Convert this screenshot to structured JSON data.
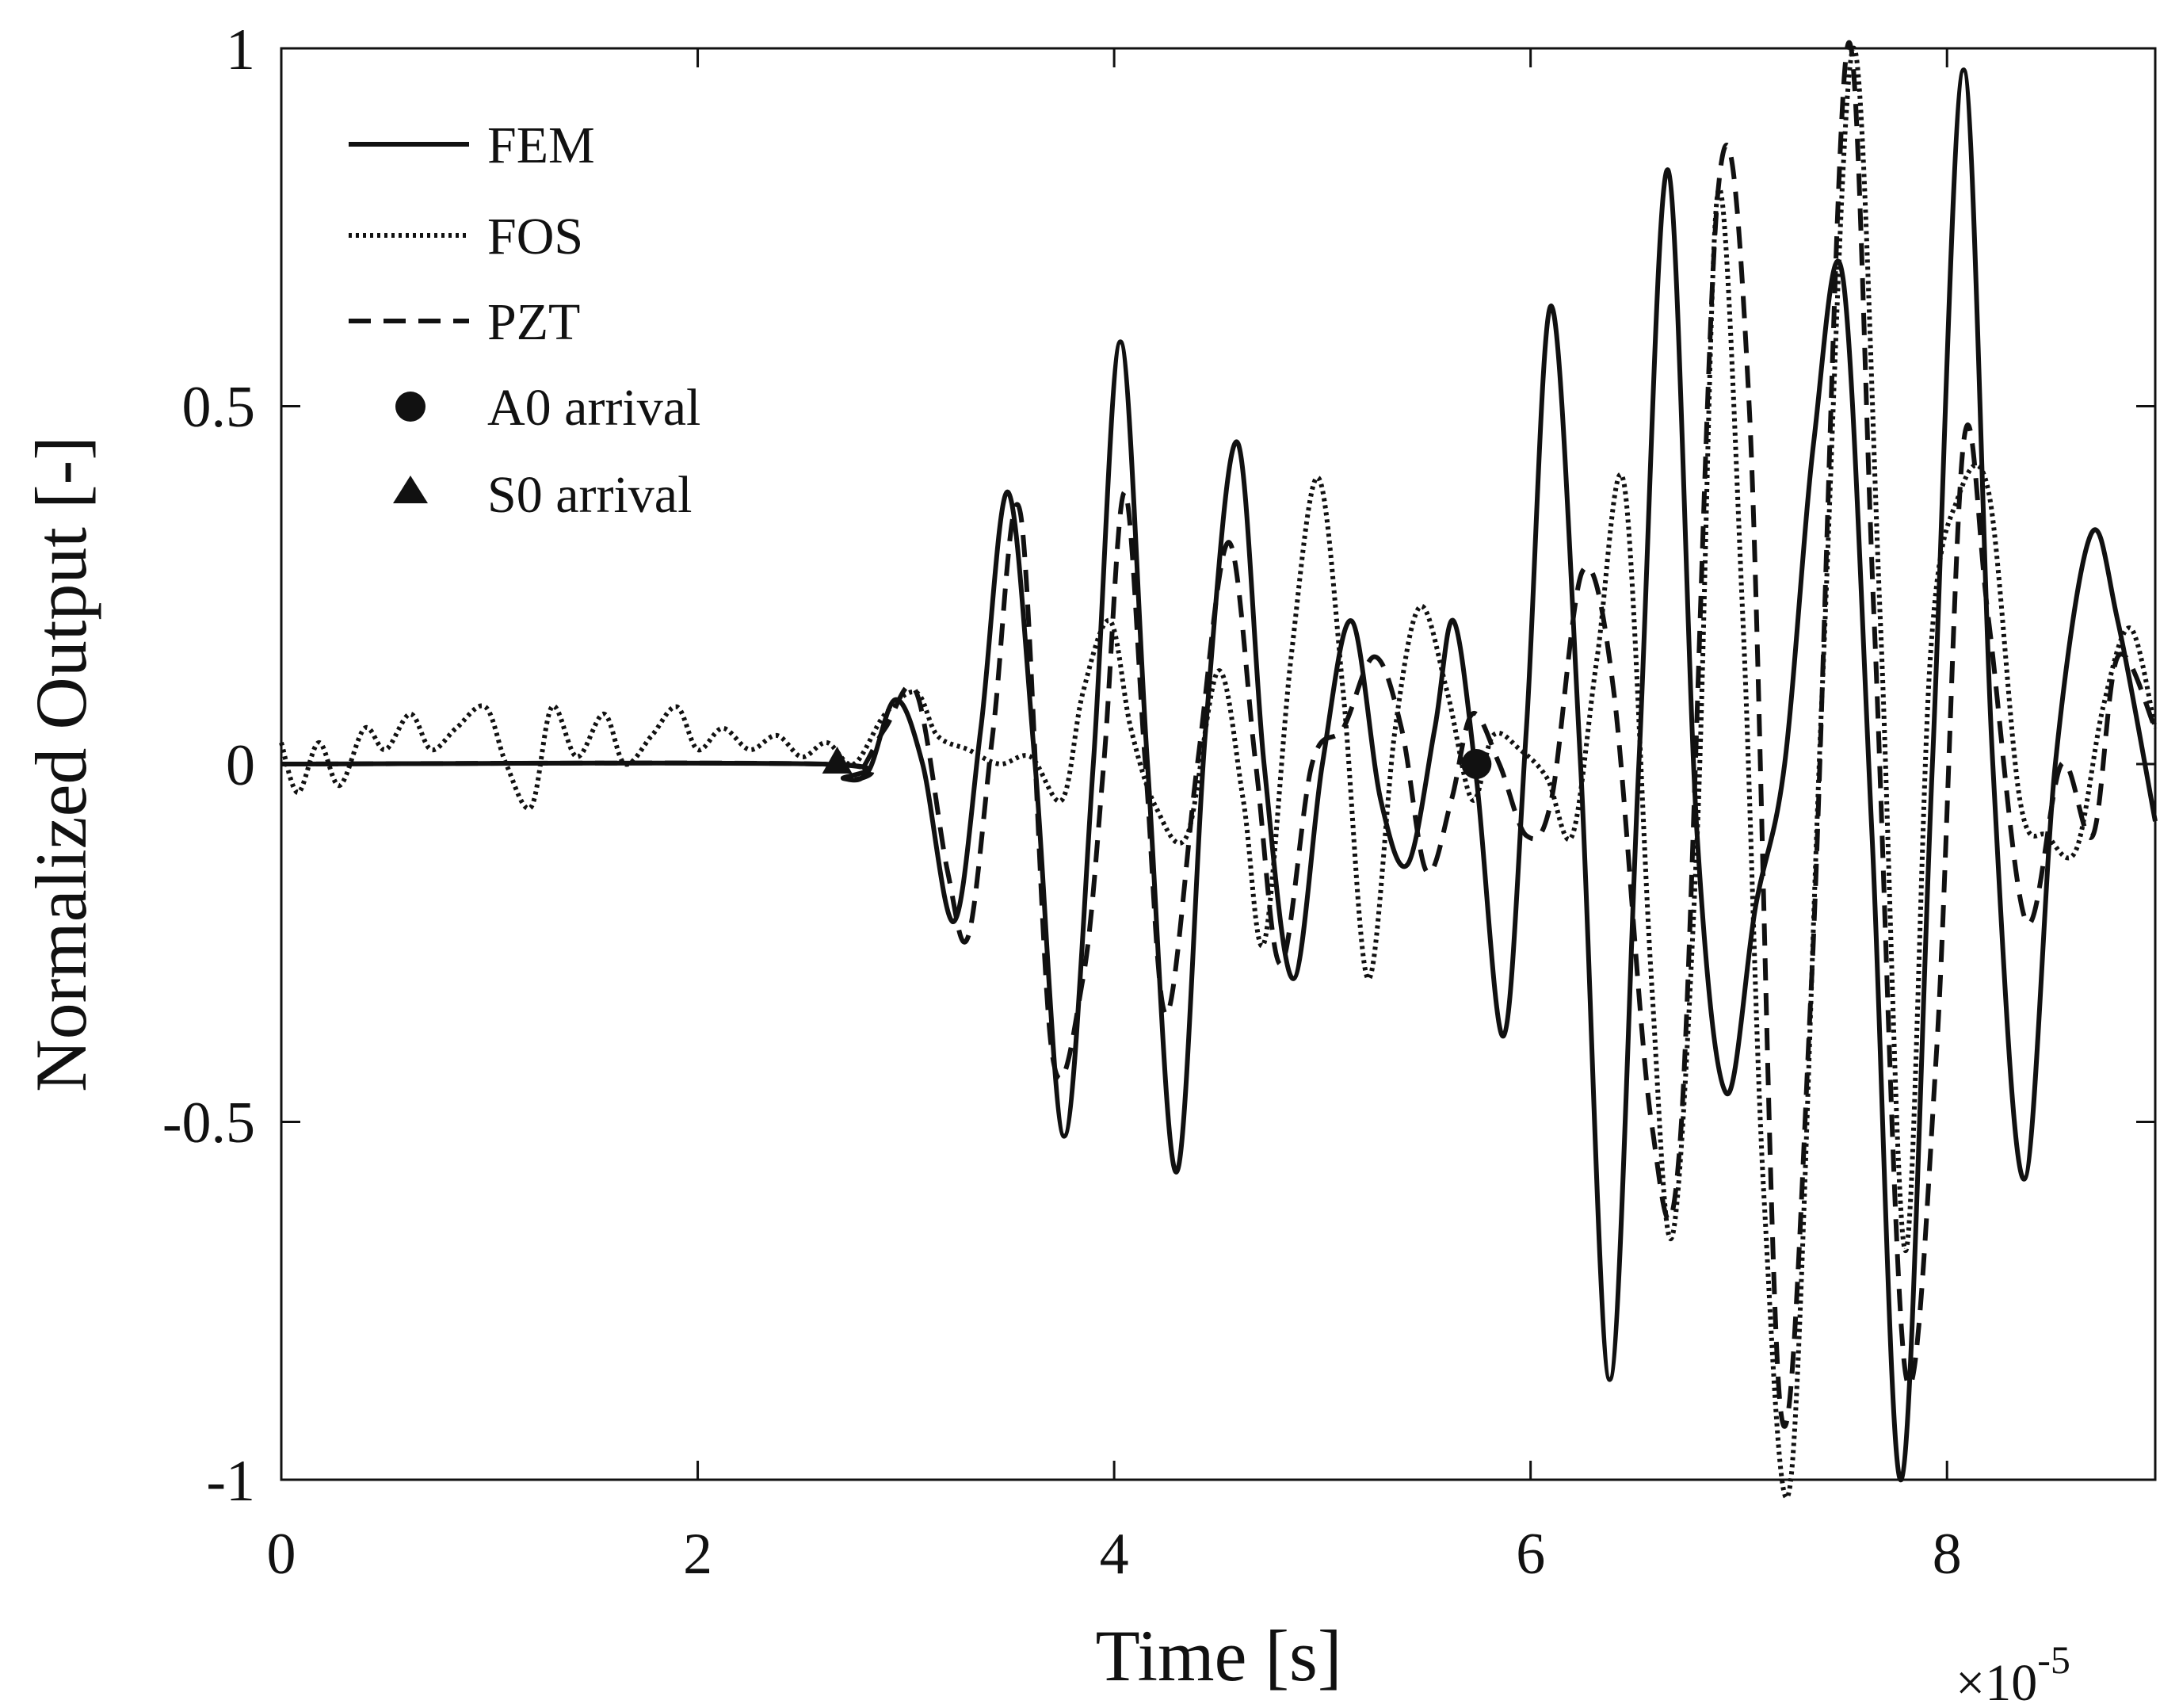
{
  "chart_data": {
    "type": "line",
    "title": "",
    "xlabel": "Time [s]",
    "ylabel": "Normalized Output [-]",
    "x_exponent_base": "×10",
    "x_exponent_power": "-5",
    "xlim": [
      0,
      9
    ],
    "ylim": [
      -1,
      1
    ],
    "x_tick_values": [
      0,
      2,
      4,
      6,
      8
    ],
    "x_tick_labels": [
      "0",
      "2",
      "4",
      "6",
      "8"
    ],
    "y_tick_values": [
      1,
      0.5,
      0,
      -0.5,
      -1
    ],
    "y_tick_labels": [
      "1",
      "0.5",
      "0",
      "-0.5",
      "-1"
    ],
    "grid": false,
    "legend_position": "top-left",
    "legend": [
      "FEM",
      "FOS",
      "PZT",
      "A0 arrival",
      "S0 arrival"
    ],
    "series": [
      {
        "name": "FEM",
        "style": "solid",
        "x": [
          0,
          2.6,
          2.7,
          2.82,
          2.95,
          3.08,
          3.23,
          3.36,
          3.49,
          3.62,
          3.76,
          3.9,
          4.03,
          4.16,
          4.3,
          4.44,
          4.59,
          4.72,
          4.86,
          5.0,
          5.14,
          5.28,
          5.41,
          5.54,
          5.63,
          5.74,
          5.87,
          5.98,
          6.1,
          6.24,
          6.38,
          6.52,
          6.66,
          6.8,
          6.94,
          7.08,
          7.22,
          7.36,
          7.5,
          7.64,
          7.78,
          7.93,
          8.08,
          8.22,
          8.37,
          8.52,
          8.69,
          8.82,
          9.0
        ],
        "y": [
          0,
          0,
          -0.02,
          -0.01,
          0.09,
          0.0,
          -0.22,
          0.05,
          0.38,
          0.0,
          -0.52,
          0.0,
          0.59,
          0.0,
          -0.57,
          0.05,
          0.45,
          0.0,
          -0.3,
          0.0,
          0.2,
          -0.05,
          -0.14,
          0.05,
          0.2,
          -0.02,
          -0.38,
          0.05,
          0.64,
          0.0,
          -0.86,
          0.0,
          0.83,
          -0.1,
          -0.46,
          -0.2,
          0.0,
          0.45,
          0.68,
          -0.1,
          -1.0,
          0.0,
          0.97,
          0.0,
          -0.58,
          0.0,
          0.32,
          0.2,
          -0.08
        ]
      },
      {
        "name": "FOS",
        "style": "dotted",
        "x": [
          0,
          0.08,
          0.18,
          0.28,
          0.4,
          0.5,
          0.62,
          0.72,
          0.84,
          0.98,
          1.08,
          1.2,
          1.3,
          1.42,
          1.55,
          1.65,
          1.78,
          1.9,
          2.0,
          2.12,
          2.25,
          2.38,
          2.5,
          2.62,
          2.75,
          2.9,
          3.05,
          3.15,
          3.3,
          3.45,
          3.6,
          3.75,
          3.85,
          3.98,
          4.08,
          4.2,
          4.35,
          4.5,
          4.62,
          4.72,
          4.85,
          4.98,
          5.1,
          5.22,
          5.35,
          5.47,
          5.6,
          5.72,
          5.82,
          5.95,
          6.08,
          6.2,
          6.32,
          6.45,
          6.58,
          6.68,
          6.8,
          6.9,
          7.02,
          7.12,
          7.25,
          7.4,
          7.55,
          7.68,
          7.8,
          7.92,
          8.05,
          8.2,
          8.35,
          8.48,
          8.62,
          8.75,
          8.88,
          9.0
        ],
        "y": [
          0.03,
          -0.04,
          0.03,
          -0.03,
          0.05,
          0.02,
          0.07,
          0.02,
          0.05,
          0.08,
          0.0,
          -0.06,
          0.08,
          0.01,
          0.07,
          0.0,
          0.04,
          0.08,
          0.02,
          0.05,
          0.02,
          0.04,
          0.01,
          0.03,
          0.0,
          0.07,
          0.1,
          0.04,
          0.02,
          0.0,
          0.01,
          -0.05,
          0.1,
          0.2,
          0.05,
          -0.06,
          -0.1,
          0.13,
          -0.05,
          -0.25,
          0.15,
          0.4,
          0.1,
          -0.3,
          0.05,
          0.22,
          0.1,
          -0.05,
          0.04,
          0.02,
          -0.02,
          -0.1,
          0.15,
          0.39,
          -0.3,
          -0.66,
          -0.1,
          0.8,
          0.2,
          -0.6,
          -1.0,
          0.1,
          1.0,
          0.2,
          -0.68,
          0.15,
          0.37,
          0.38,
          -0.05,
          -0.1,
          -0.12,
          0.08,
          0.19,
          0.05
        ]
      },
      {
        "name": "PZT",
        "style": "dashed",
        "x": [
          0,
          2.6,
          2.75,
          2.9,
          3.05,
          3.2,
          3.3,
          3.42,
          3.55,
          3.7,
          3.85,
          3.95,
          4.05,
          4.15,
          4.25,
          4.4,
          4.55,
          4.68,
          4.8,
          4.95,
          5.1,
          5.25,
          5.38,
          5.5,
          5.62,
          5.72,
          5.85,
          5.98,
          6.1,
          6.25,
          6.4,
          6.58,
          6.72,
          6.9,
          7.05,
          7.2,
          7.35,
          7.52,
          7.65,
          7.8,
          7.95,
          8.08,
          8.2,
          8.38,
          8.55,
          8.7,
          8.82,
          9.0
        ],
        "y": [
          0,
          0,
          -0.02,
          0.05,
          0.1,
          -0.15,
          -0.24,
          0.05,
          0.35,
          -0.4,
          -0.3,
          0.0,
          0.38,
          0.0,
          -0.35,
          0.0,
          0.31,
          0.0,
          -0.28,
          0.0,
          0.05,
          0.15,
          0.05,
          -0.15,
          -0.05,
          0.07,
          0.0,
          -0.1,
          -0.05,
          0.27,
          0.1,
          -0.5,
          -0.52,
          0.8,
          0.5,
          -0.9,
          -0.3,
          1.0,
          0.2,
          -0.85,
          -0.4,
          0.45,
          0.2,
          -0.22,
          0.0,
          -0.1,
          0.15,
          0.05
        ]
      }
    ],
    "markers": [
      {
        "name": "A0 arrival",
        "shape": "circle",
        "x": 5.74,
        "y": 0
      },
      {
        "name": "S0 arrival",
        "shape": "triangle",
        "x": 2.67,
        "y": 0
      }
    ]
  }
}
